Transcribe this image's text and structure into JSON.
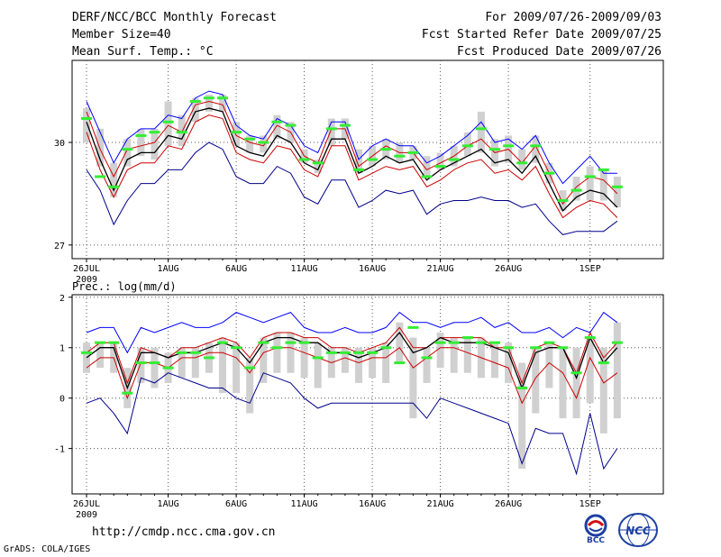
{
  "header": {
    "title": "DERF/NCC/BCC Monthly Forecast",
    "member": "Member Size=40",
    "variable": "Mean Surf. Temp.: °C",
    "period": "For 2009/07/26-2009/09/03",
    "started": "Fcst Started Refer Date 2009/07/25",
    "produced": "Fcst Produced Date 2009/07/26"
  },
  "footer": {
    "url": "http://cmdp.ncc.cma.gov.cn",
    "credit": "GrADS: COLA/IGES",
    "logo_left": "BCC",
    "logo_right": "NCC"
  },
  "chart_data": [
    {
      "type": "line",
      "title": "Mean Surf. Temp.: °C",
      "xlabel": "",
      "ylabel": "°C",
      "x_tick_labels": [
        "26JUL",
        "1AUG",
        "6AUG",
        "11AUG",
        "16AUG",
        "21AUG",
        "26AUG",
        "1SEP"
      ],
      "year_label": "2009",
      "ylim": [
        26.6,
        32.4
      ],
      "yticks": [
        27,
        30
      ],
      "grid": "dotted",
      "days": 40,
      "series": [
        {
          "name": "max",
          "color": "#0000ff",
          "values": [
            31.2,
            30.3,
            29.4,
            30.1,
            30.4,
            30.4,
            30.8,
            30.7,
            31.3,
            31.5,
            31.4,
            30.5,
            30.2,
            30.1,
            30.7,
            30.5,
            29.9,
            29.7,
            30.6,
            30.6,
            29.5,
            29.9,
            30.1,
            29.9,
            29.9,
            29.4,
            29.6,
            29.9,
            30.2,
            30.6,
            30.0,
            30.1,
            29.8,
            30.2,
            29.4,
            28.8,
            29.2,
            29.6,
            29.1,
            29.1
          ]
        },
        {
          "name": "upper",
          "color": "#cc0000",
          "values": [
            30.9,
            29.8,
            29.0,
            29.8,
            29.9,
            30.0,
            30.5,
            30.3,
            31.1,
            31.2,
            31.1,
            30.2,
            30.0,
            29.9,
            30.5,
            30.3,
            29.6,
            29.4,
            30.4,
            30.4,
            29.3,
            29.6,
            29.9,
            29.7,
            29.7,
            29.2,
            29.4,
            29.6,
            29.9,
            30.1,
            29.7,
            29.8,
            29.4,
            29.9,
            29.1,
            28.2,
            28.7,
            29.0,
            28.9,
            28.5
          ]
        },
        {
          "name": "mean",
          "color": "#000000",
          "values": [
            30.6,
            29.5,
            28.6,
            29.5,
            29.7,
            29.7,
            30.2,
            30.1,
            30.9,
            31.0,
            30.9,
            29.9,
            29.7,
            29.6,
            30.2,
            30.0,
            29.4,
            29.2,
            30.1,
            30.1,
            29.1,
            29.3,
            29.6,
            29.4,
            29.5,
            28.9,
            29.2,
            29.4,
            29.6,
            29.8,
            29.4,
            29.5,
            29.1,
            29.6,
            28.8,
            28.0,
            28.4,
            28.6,
            28.5,
            28.1
          ]
        },
        {
          "name": "lower",
          "color": "#cc0000",
          "values": [
            30.3,
            29.2,
            28.4,
            29.2,
            29.4,
            29.4,
            29.9,
            29.8,
            30.6,
            30.8,
            30.7,
            29.7,
            29.5,
            29.4,
            29.9,
            29.8,
            29.2,
            29.0,
            29.9,
            29.9,
            28.9,
            29.1,
            29.3,
            29.2,
            29.3,
            28.7,
            28.9,
            29.2,
            29.4,
            29.5,
            29.1,
            29.2,
            28.9,
            29.3,
            28.5,
            27.8,
            28.1,
            28.3,
            28.2,
            27.8
          ]
        },
        {
          "name": "min",
          "color": "#00008b",
          "values": [
            29.2,
            28.6,
            27.6,
            28.3,
            28.8,
            28.8,
            29.2,
            29.2,
            29.7,
            30.0,
            29.8,
            29.0,
            28.8,
            28.8,
            29.3,
            29.1,
            28.4,
            28.2,
            28.9,
            28.9,
            28.1,
            28.3,
            28.6,
            28.5,
            28.6,
            27.9,
            28.2,
            28.3,
            28.3,
            28.4,
            28.3,
            28.3,
            28.1,
            28.2,
            27.7,
            27.3,
            27.4,
            27.4,
            27.4,
            27.7
          ]
        }
      ],
      "boxes": [
        [
          30.0,
          31.0
        ],
        [
          29.3,
          30.4
        ],
        [
          28.4,
          29.4
        ],
        [
          29.3,
          30.1
        ],
        [
          29.6,
          30.4
        ],
        [
          29.5,
          30.4
        ],
        [
          29.9,
          31.2
        ],
        [
          29.9,
          30.8
        ],
        [
          30.6,
          31.3
        ],
        [
          30.9,
          31.4
        ],
        [
          30.9,
          31.4
        ],
        [
          29.9,
          30.6
        ],
        [
          29.7,
          30.2
        ],
        [
          29.7,
          30.2
        ],
        [
          30.1,
          30.8
        ],
        [
          30.0,
          30.6
        ],
        [
          29.4,
          29.8
        ],
        [
          29.1,
          29.5
        ],
        [
          29.9,
          30.7
        ],
        [
          30.1,
          30.7
        ],
        [
          29.1,
          29.8
        ],
        [
          29.3,
          29.9
        ],
        [
          29.5,
          30.1
        ],
        [
          29.4,
          30.0
        ],
        [
          29.5,
          29.9
        ],
        [
          29.0,
          29.6
        ],
        [
          29.2,
          29.7
        ],
        [
          29.3,
          29.9
        ],
        [
          29.6,
          30.3
        ],
        [
          29.7,
          30.9
        ],
        [
          29.3,
          30.1
        ],
        [
          29.4,
          30.2
        ],
        [
          29.2,
          29.8
        ],
        [
          29.4,
          30.2
        ],
        [
          28.8,
          29.4
        ],
        [
          28.0,
          28.6
        ],
        [
          28.3,
          29.0
        ],
        [
          28.3,
          29.3
        ],
        [
          28.3,
          29.2
        ],
        [
          28.1,
          29.0
        ]
      ],
      "markers": [
        30.7,
        29.0,
        28.7,
        29.8,
        30.2,
        30.3,
        30.6,
        30.3,
        31.2,
        31.3,
        31.3,
        30.3,
        30.1,
        30.0,
        30.6,
        30.5,
        29.5,
        29.4,
        30.4,
        30.5,
        29.2,
        29.5,
        29.8,
        29.6,
        29.7,
        29.0,
        29.3,
        29.5,
        29.9,
        30.4,
        29.8,
        29.9,
        29.4,
        29.9,
        29.1,
        28.3,
        28.6,
        29.0,
        29.2,
        28.7
      ]
    },
    {
      "type": "line",
      "title": "Prec.: log(mm/d)",
      "xlabel": "",
      "ylabel": "log(mm/d)",
      "x_tick_labels": [
        "26JUL",
        "1AUG",
        "6AUG",
        "11AUG",
        "16AUG",
        "21AUG",
        "26AUG",
        "1SEP"
      ],
      "year_label": "2009",
      "ylim": [
        -1.9,
        2.05
      ],
      "yticks": [
        -1,
        0,
        1,
        2
      ],
      "grid": "dotted",
      "days": 40,
      "series": [
        {
          "name": "max",
          "color": "#0000ff",
          "values": [
            1.3,
            1.4,
            1.4,
            0.9,
            1.4,
            1.3,
            1.4,
            1.5,
            1.4,
            1.4,
            1.5,
            1.7,
            1.6,
            1.5,
            1.6,
            1.7,
            1.4,
            1.3,
            1.3,
            1.4,
            1.3,
            1.3,
            1.4,
            1.7,
            1.5,
            1.5,
            1.4,
            1.5,
            1.5,
            1.6,
            1.4,
            1.5,
            1.3,
            1.3,
            1.4,
            1.2,
            1.4,
            1.3,
            1.7,
            1.5
          ]
        },
        {
          "name": "upper",
          "color": "#cc0000",
          "values": [
            0.9,
            1.1,
            1.1,
            0.3,
            1.0,
            0.9,
            0.8,
            1.0,
            1.0,
            1.1,
            1.2,
            1.1,
            0.8,
            1.2,
            1.3,
            1.3,
            1.2,
            1.2,
            1.0,
            1.0,
            0.9,
            1.0,
            1.1,
            1.4,
            1.0,
            1.0,
            1.2,
            1.2,
            1.2,
            1.2,
            1.0,
            1.0,
            0.3,
            1.0,
            1.1,
            1.0,
            0.5,
            1.3,
            0.8,
            1.1
          ]
        },
        {
          "name": "mean",
          "color": "#000000",
          "values": [
            0.8,
            1.0,
            1.0,
            0.2,
            0.9,
            0.9,
            0.8,
            0.9,
            0.9,
            1.0,
            1.1,
            1.0,
            0.7,
            1.1,
            1.2,
            1.2,
            1.1,
            1.1,
            0.9,
            0.9,
            0.8,
            0.9,
            1.0,
            1.3,
            0.9,
            1.0,
            1.2,
            1.1,
            1.1,
            1.1,
            1.0,
            0.9,
            0.2,
            0.9,
            1.0,
            1.0,
            0.4,
            1.2,
            0.7,
            1.0
          ]
        },
        {
          "name": "lower",
          "color": "#cc0000",
          "values": [
            0.6,
            0.8,
            0.8,
            0.0,
            0.7,
            0.7,
            0.6,
            0.8,
            0.8,
            0.9,
            0.9,
            0.8,
            0.5,
            0.9,
            1.0,
            1.0,
            0.9,
            0.8,
            0.7,
            0.8,
            0.7,
            0.8,
            0.8,
            1.0,
            0.6,
            0.8,
            1.0,
            1.0,
            0.9,
            0.8,
            0.7,
            0.6,
            -0.1,
            0.4,
            0.7,
            0.5,
            0.0,
            0.8,
            0.3,
            0.5
          ]
        },
        {
          "name": "min",
          "color": "#00008b",
          "values": [
            -0.1,
            0.0,
            -0.3,
            -0.7,
            0.4,
            0.3,
            0.5,
            0.4,
            0.3,
            0.2,
            0.2,
            0.0,
            -0.1,
            0.5,
            0.4,
            0.3,
            0.0,
            -0.2,
            -0.1,
            -0.1,
            -0.1,
            -0.1,
            -0.1,
            -0.1,
            -0.1,
            -0.4,
            0.0,
            -0.1,
            -0.2,
            -0.3,
            -0.4,
            -0.5,
            -1.3,
            -0.6,
            -0.7,
            -0.7,
            -1.5,
            -0.3,
            -1.4,
            -1.0
          ]
        },
        {
          "name": "top_left",
          "color": "#000000",
          "values": [
            1.0
          ]
        }
      ],
      "boxes": [
        [
          0.5,
          1.1
        ],
        [
          0.6,
          1.1
        ],
        [
          0.5,
          1.1
        ],
        [
          -0.2,
          0.6
        ],
        [
          0.3,
          1.0
        ],
        [
          0.2,
          1.0
        ],
        [
          0.3,
          0.9
        ],
        [
          0.4,
          1.0
        ],
        [
          0.4,
          1.0
        ],
        [
          0.5,
          1.1
        ],
        [
          0.1,
          1.2
        ],
        [
          0.1,
          1.1
        ],
        [
          -0.3,
          0.8
        ],
        [
          0.3,
          1.2
        ],
        [
          0.5,
          1.3
        ],
        [
          0.5,
          1.3
        ],
        [
          0.4,
          1.2
        ],
        [
          0.2,
          1.1
        ],
        [
          0.4,
          1.0
        ],
        [
          0.5,
          1.0
        ],
        [
          0.3,
          1.0
        ],
        [
          0.4,
          1.0
        ],
        [
          0.3,
          1.1
        ],
        [
          0.7,
          1.5
        ],
        [
          -0.4,
          1.2
        ],
        [
          0.3,
          1.0
        ],
        [
          0.6,
          1.3
        ],
        [
          0.5,
          1.2
        ],
        [
          0.5,
          1.2
        ],
        [
          0.4,
          1.2
        ],
        [
          0.4,
          1.1
        ],
        [
          0.3,
          1.1
        ],
        [
          -1.4,
          0.7
        ],
        [
          -0.3,
          1.0
        ],
        [
          0.2,
          1.1
        ],
        [
          -0.4,
          1.0
        ],
        [
          -0.4,
          1.0
        ],
        [
          -0.1,
          1.2
        ],
        [
          -0.7,
          1.0
        ],
        [
          -0.4,
          1.5
        ]
      ],
      "markers": [
        0.9,
        1.1,
        1.1,
        0.1,
        0.7,
        0.7,
        0.6,
        0.9,
        0.9,
        0.8,
        1.1,
        1.0,
        0.6,
        1.1,
        1.0,
        1.1,
        1.1,
        0.8,
        0.9,
        0.9,
        0.9,
        0.9,
        1.0,
        0.7,
        1.4,
        0.8,
        1.1,
        1.1,
        1.2,
        1.1,
        1.1,
        1.0,
        0.2,
        1.0,
        1.1,
        1.0,
        0.5,
        1.2,
        0.7,
        1.1
      ]
    }
  ]
}
